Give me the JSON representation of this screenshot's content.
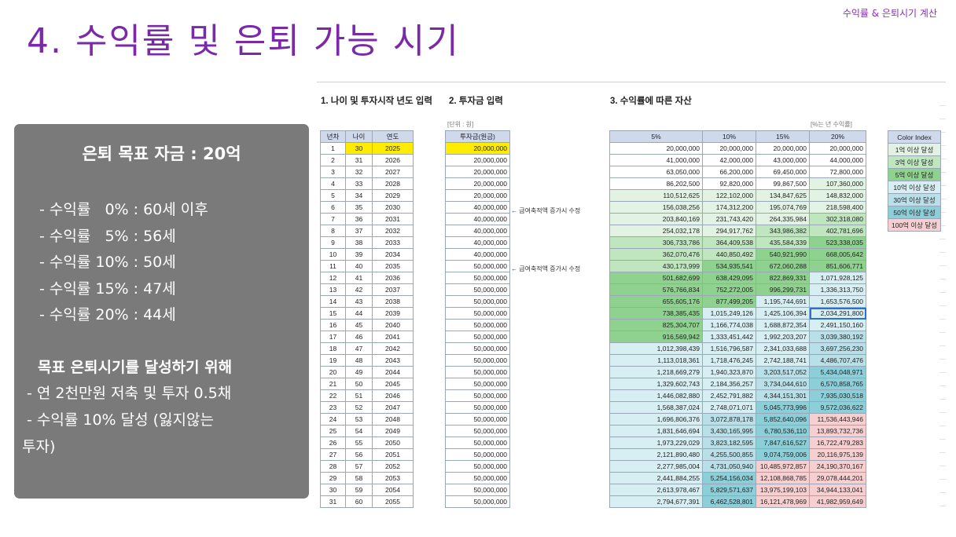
{
  "header": {
    "corner_label": "수익률 & 은퇴시기 계산",
    "title": "4. 수익률 및 은퇴 가능 시기"
  },
  "panel": {
    "goal": "은퇴 목표 자금 : 20억",
    "rates": [
      "- 수익률   0% : 60세 이후",
      "- 수익률   5% : 56세",
      "- 수익률 10% : 50세",
      "- 수익률 15% : 47세",
      "- 수익률 20% : 44세"
    ],
    "goal_heading": "목표 은퇴시기를 달성하기 위해",
    "goal_line1": "- 연 2천만원 저축 및 투자 0.5채",
    "goal_line2": "- 수익률 10% 달성 (잃지않는",
    "goal_line3": "투자)"
  },
  "sheet": {
    "sec1": "1. 나이 및 투자시작 년도 입력",
    "sec2": "2. 투자금 입력",
    "sec3": "3. 수익률에 따른 자산",
    "unit_won": "[단위 : 원]",
    "unit_rate": "[%는 년 수익률]",
    "note": "← 급여축적액 증가시 수정",
    "headers1": [
      "년차",
      "나이",
      "연도"
    ],
    "header2": "투자금(원금)",
    "headers3": [
      "5%",
      "10%",
      "15%",
      "20%"
    ],
    "legend_header": "Color Index",
    "legend": [
      "1억 이상 달성",
      "3억 이상 달성",
      "5억 이상 달성",
      "10억 이상 달성",
      "30억 이상 달성",
      "50억 이상 달성",
      "100억 이상 달성"
    ],
    "legend_colors": [
      "#e3f3e3",
      "#bfe6bf",
      "#8fd18f",
      "#d7eef3",
      "#b9e0e8",
      "#8ccfd9",
      "#f8cfd0"
    ],
    "rows": [
      [
        "1",
        "30",
        "2025",
        "20,000,000",
        "20,000,000",
        "20,000,000",
        "20,000,000",
        "20,000,000"
      ],
      [
        "2",
        "31",
        "2026",
        "20,000,000",
        "41,000,000",
        "42,000,000",
        "43,000,000",
        "44,000,000"
      ],
      [
        "3",
        "32",
        "2027",
        "20,000,000",
        "63,050,000",
        "66,200,000",
        "69,450,000",
        "72,800,000"
      ],
      [
        "4",
        "33",
        "2028",
        "20,000,000",
        "86,202,500",
        "92,820,000",
        "99,867,500",
        "107,360,000"
      ],
      [
        "5",
        "34",
        "2029",
        "20,000,000",
        "110,512,625",
        "122,102,000",
        "134,847,625",
        "148,832,000"
      ],
      [
        "6",
        "35",
        "2030",
        "40,000,000",
        "156,038,256",
        "174,312,200",
        "195,074,769",
        "218,598,400"
      ],
      [
        "7",
        "36",
        "2031",
        "40,000,000",
        "203,840,169",
        "231,743,420",
        "264,335,984",
        "302,318,080"
      ],
      [
        "8",
        "37",
        "2032",
        "40,000,000",
        "254,032,178",
        "294,917,762",
        "343,986,382",
        "402,781,696"
      ],
      [
        "9",
        "38",
        "2033",
        "40,000,000",
        "306,733,786",
        "364,409,538",
        "435,584,339",
        "523,338,035"
      ],
      [
        "10",
        "39",
        "2034",
        "40,000,000",
        "362,070,476",
        "440,850,492",
        "540,921,990",
        "668,005,642"
      ],
      [
        "11",
        "40",
        "2035",
        "50,000,000",
        "430,173,999",
        "534,935,541",
        "672,060,288",
        "851,606,771"
      ],
      [
        "12",
        "41",
        "2036",
        "50,000,000",
        "501,682,699",
        "638,429,095",
        "822,869,331",
        "1,071,928,125"
      ],
      [
        "13",
        "42",
        "2037",
        "50,000,000",
        "576,766,834",
        "752,272,005",
        "996,299,731",
        "1,336,313,750"
      ],
      [
        "14",
        "43",
        "2038",
        "50,000,000",
        "655,605,176",
        "877,499,205",
        "1,195,744,691",
        "1,653,576,500"
      ],
      [
        "15",
        "44",
        "2039",
        "50,000,000",
        "738,385,435",
        "1,015,249,126",
        "1,425,106,394",
        "2,034,291,800"
      ],
      [
        "16",
        "45",
        "2040",
        "50,000,000",
        "825,304,707",
        "1,166,774,038",
        "1,688,872,354",
        "2,491,150,160"
      ],
      [
        "17",
        "46",
        "2041",
        "50,000,000",
        "916,569,942",
        "1,333,451,442",
        "1,992,203,207",
        "3,039,380,192"
      ],
      [
        "18",
        "47",
        "2042",
        "50,000,000",
        "1,012,398,439",
        "1,516,796,587",
        "2,341,033,688",
        "3,697,256,230"
      ],
      [
        "19",
        "48",
        "2043",
        "50,000,000",
        "1,113,018,361",
        "1,718,476,245",
        "2,742,188,741",
        "4,486,707,476"
      ],
      [
        "20",
        "49",
        "2044",
        "50,000,000",
        "1,218,669,279",
        "1,940,323,870",
        "3,203,517,052",
        "5,434,048,971"
      ],
      [
        "21",
        "50",
        "2045",
        "50,000,000",
        "1,329,602,743",
        "2,184,356,257",
        "3,734,044,610",
        "6,570,858,765"
      ],
      [
        "22",
        "51",
        "2046",
        "50,000,000",
        "1,446,082,880",
        "2,452,791,882",
        "4,344,151,301",
        "7,935,030,518"
      ],
      [
        "23",
        "52",
        "2047",
        "50,000,000",
        "1,568,387,024",
        "2,748,071,071",
        "5,045,773,996",
        "9,572,036,622"
      ],
      [
        "24",
        "53",
        "2048",
        "50,000,000",
        "1,696,806,376",
        "3,072,878,178",
        "5,852,640,096",
        "11,536,443,946"
      ],
      [
        "25",
        "54",
        "2049",
        "50,000,000",
        "1,831,646,694",
        "3,430,165,995",
        "6,780,536,110",
        "13,893,732,736"
      ],
      [
        "26",
        "55",
        "2050",
        "50,000,000",
        "1,973,229,029",
        "3,823,182,595",
        "7,847,616,527",
        "16,722,479,283"
      ],
      [
        "27",
        "56",
        "2051",
        "50,000,000",
        "2,121,890,480",
        "4,255,500,855",
        "9,074,759,006",
        "20,116,975,139"
      ],
      [
        "28",
        "57",
        "2052",
        "50,000,000",
        "2,277,985,004",
        "4,731,050,940",
        "10,485,972,857",
        "24,190,370,167"
      ],
      [
        "29",
        "58",
        "2053",
        "50,000,000",
        "2,441,884,255",
        "5,254,156,034",
        "12,108,868,785",
        "29,078,444,201"
      ],
      [
        "30",
        "59",
        "2054",
        "50,000,000",
        "2,613,978,467",
        "5,829,571,637",
        "13,975,199,103",
        "34,944,133,041"
      ],
      [
        "31",
        "60",
        "2055",
        "50,000,000",
        "2,794,677,391",
        "6,462,528,801",
        "16,121,478,969",
        "41,982,959,649"
      ]
    ]
  }
}
